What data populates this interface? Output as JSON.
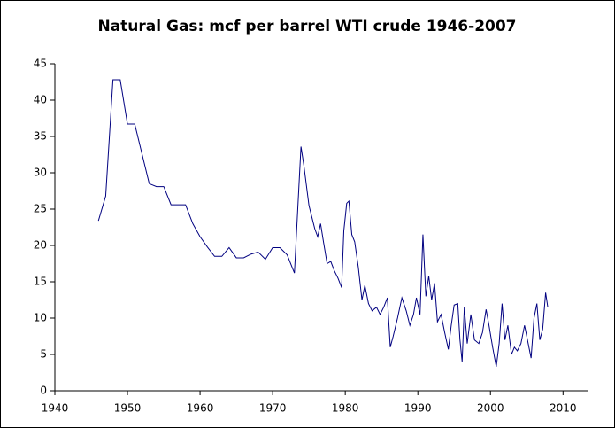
{
  "chart_data": {
    "type": "line",
    "title": "Natural Gas: mcf per barrel WTI crude 1946-2007",
    "color": "#000080",
    "x": [
      1946,
      1947,
      1948,
      1949,
      1950,
      1951,
      1953,
      1954,
      1955,
      1956,
      1957,
      1958,
      1959,
      1960,
      1961,
      1962,
      1963,
      1964,
      1965,
      1966,
      1967,
      1968,
      1969,
      1970,
      1971,
      1972,
      1973,
      1973.9,
      1974.3,
      1975,
      1975.8,
      1976.2,
      1976.6,
      1977,
      1977.5,
      1978,
      1978.5,
      1979,
      1979.5,
      1979.8,
      1980.2,
      1980.5,
      1980.9,
      1981.3,
      1981.8,
      1982.3,
      1982.7,
      1983.2,
      1983.7,
      1984.3,
      1984.8,
      1985.3,
      1985.8,
      1986.2,
      1986.6,
      1987.2,
      1987.8,
      1988.4,
      1988.9,
      1989.4,
      1989.8,
      1990.3,
      1990.7,
      1991.1,
      1991.5,
      1991.9,
      1992.3,
      1992.7,
      1993.2,
      1993.7,
      1994.2,
      1994.6,
      1995,
      1995.5,
      1995.8,
      1996.1,
      1996.4,
      1996.8,
      1997.3,
      1997.8,
      1998.4,
      1998.9,
      1999.4,
      1999.8,
      2000.3,
      2000.8,
      2001.2,
      2001.6,
      2002,
      2002.4,
      2002.9,
      2003.3,
      2003.7,
      2004.2,
      2004.7,
      2005.1,
      2005.6,
      2006,
      2006.4,
      2006.8,
      2007.2,
      2007.6,
      2007.9
    ],
    "values": [
      23.4,
      26.8,
      42.8,
      42.8,
      36.7,
      36.7,
      28.5,
      28.1,
      28.1,
      25.6,
      25.6,
      25.6,
      23,
      21.2,
      19.8,
      18.5,
      18.5,
      19.7,
      18.3,
      18.3,
      18.8,
      19.1,
      18.1,
      19.7,
      19.7,
      18.7,
      16.2,
      33.6,
      31,
      25.5,
      22.3,
      21.2,
      23,
      20.5,
      17.5,
      17.8,
      16.5,
      15.5,
      14.2,
      22,
      25.8,
      26.1,
      21.5,
      20.5,
      17,
      12.5,
      14.5,
      12,
      11,
      11.5,
      10.5,
      11.5,
      12.8,
      6,
      7.5,
      10,
      12.8,
      11,
      9,
      10.5,
      12.8,
      10.5,
      21.5,
      13,
      15.8,
      12.5,
      14.8,
      9.5,
      10.5,
      8,
      5.7,
      9,
      11.8,
      12,
      7,
      4,
      11.5,
      6.5,
      10.5,
      7,
      6.5,
      8,
      11.2,
      9,
      6,
      3.3,
      6.5,
      12,
      7,
      9,
      5,
      6,
      5.5,
      6.5,
      9,
      7,
      4.5,
      10,
      12,
      7,
      8.5,
      13.5,
      11.5
    ],
    "xlim": [
      1940,
      2013.5
    ],
    "xticks": [
      1940,
      1950,
      1960,
      1970,
      1980,
      1990,
      2000,
      2010
    ],
    "ylim": [
      0,
      45
    ],
    "yticks": [
      0,
      5,
      10,
      15,
      20,
      25,
      30,
      35,
      40,
      45
    ],
    "grid": false
  }
}
